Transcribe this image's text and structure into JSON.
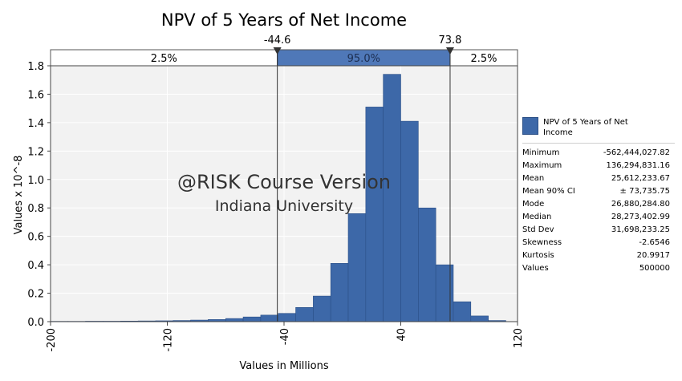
{
  "chart_data": {
    "type": "bar",
    "title": "NPV of 5 Years of Net Income",
    "xlabel": "Values in Millions",
    "ylabel": "Values x 10^-8",
    "xlim": [
      -200,
      120
    ],
    "ylim": [
      0,
      1.8
    ],
    "x_ticks": [
      "-200",
      "-120",
      "-40",
      "40",
      "120"
    ],
    "x_tick_values": [
      -200,
      -120,
      -40,
      40,
      120
    ],
    "y_ticks": [
      "0.0",
      "0.2",
      "0.4",
      "0.6",
      "0.8",
      "1.0",
      "1.2",
      "1.4",
      "1.6",
      "1.8"
    ],
    "y_tick_values": [
      0,
      0.2,
      0.4,
      0.6,
      0.8,
      1.0,
      1.2,
      1.4,
      1.6,
      1.8
    ],
    "bin_width": 12,
    "bins_left": [
      -200,
      -188,
      -176,
      -164,
      -152,
      -140,
      -128,
      -116,
      -104,
      -92,
      -80,
      -68,
      -56,
      -44,
      -32,
      -20,
      -8,
      4,
      16,
      28,
      40,
      52,
      64,
      76,
      88,
      100
    ],
    "values": [
      0.002,
      0.002,
      0.003,
      0.003,
      0.004,
      0.005,
      0.006,
      0.008,
      0.011,
      0.015,
      0.022,
      0.033,
      0.046,
      0.058,
      0.1,
      0.18,
      0.41,
      0.76,
      1.51,
      1.74,
      1.41,
      0.8,
      0.4,
      0.14,
      0.04,
      0.008
    ],
    "delimiters": {
      "left_value": -44.6,
      "right_value": 73.8,
      "left_label": "-44.6",
      "right_label": "73.8",
      "left_pct": "2.5%",
      "middle_pct": "95.0%",
      "right_pct": "2.5%"
    },
    "watermark": {
      "line1": "@RISK Course Version",
      "line2": "Indiana University"
    },
    "colors": {
      "bar": "#3d68a8",
      "bar_edge": "#2b4f86",
      "plot_bg": "#f2f2f2",
      "band_fill": "#4f78b8"
    },
    "legend": {
      "series_name": "NPV of 5 Years of Net Income",
      "stats": [
        {
          "label": "Minimum",
          "value": "-562,444,027.82"
        },
        {
          "label": "Maximum",
          "value": "136,294,831.16"
        },
        {
          "label": "Mean",
          "value": "25,612,233.67"
        },
        {
          "label": "Mean 90% CI",
          "value": "± 73,735.75"
        },
        {
          "label": "Mode",
          "value": "26,880,284.80"
        },
        {
          "label": "Median",
          "value": "28,273,402.99"
        },
        {
          "label": "Std Dev",
          "value": "31,698,233.25"
        },
        {
          "label": "Skewness",
          "value": "-2.6546"
        },
        {
          "label": "Kurtosis",
          "value": "20.9917"
        },
        {
          "label": "Values",
          "value": "500000"
        }
      ]
    }
  }
}
